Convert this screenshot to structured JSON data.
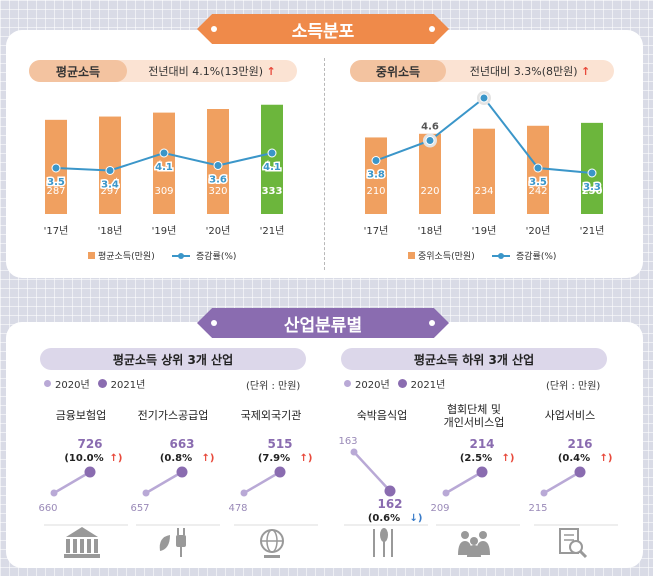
{
  "income": {
    "title": "소득분포",
    "avg": {
      "label": "평균소득",
      "change_text": "전년대비 4.1%(13만원)",
      "chart_data": {
        "type": "bar",
        "categories": [
          "'17년",
          "'18년",
          "'19년",
          "'20년",
          "'21년"
        ],
        "series": [
          {
            "name": "평균소득(만원)",
            "values": [
              287,
              297,
              309,
              320,
              333
            ]
          },
          {
            "name": "증감률(%)",
            "values": [
              3.5,
              3.4,
              4.1,
              3.6,
              4.1
            ]
          }
        ],
        "ylim": [
          0,
          400
        ],
        "rate_ylim": [
          0,
          8
        ]
      }
    },
    "median": {
      "label": "중위소득",
      "change_text": "전년대비 3.3%(8만원)",
      "chart_data": {
        "type": "bar",
        "categories": [
          "'17년",
          "'18년",
          "'19년",
          "'20년",
          "'21년"
        ],
        "series": [
          {
            "name": "중위소득(만원)",
            "values": [
              210,
              220,
              234,
              242,
              250
            ]
          },
          {
            "name": "증감률(%)",
            "values": [
              3.8,
              4.6,
              6.3,
              3.5,
              3.3
            ]
          }
        ],
        "ylim": [
          0,
          360
        ],
        "rate_ylim": [
          0,
          8
        ]
      }
    },
    "arrow_up": "↑"
  },
  "industry": {
    "title": "산업분류별",
    "top": {
      "header": "평균소득 상위 3개 산업",
      "legend_2020": "2020년",
      "legend_2021": "2021년",
      "unit": "(단위 : 만원)",
      "chart_data": {
        "type": "line",
        "items": [
          {
            "name": "금융보험업",
            "v2020": 660,
            "v2021": 726,
            "rate": "(10.0%",
            "dir": "↑",
            "icon": "bank-icon"
          },
          {
            "name": "전기가스공급업",
            "v2020": 657,
            "v2021": 663,
            "rate": "(0.8%",
            "dir": "↑",
            "icon": "plug-leaf-icon"
          },
          {
            "name": "국제외국기관",
            "v2020": 478,
            "v2021": 515,
            "rate": "(7.9%",
            "dir": "↑",
            "icon": "globe-icon"
          }
        ]
      }
    },
    "bottom": {
      "header": "평균소득 하위 3개 산업",
      "legend_2020": "2020년",
      "legend_2021": "2021년",
      "unit": "(단위 : 만원)",
      "chart_data": {
        "type": "line",
        "items": [
          {
            "name": "숙박음식업",
            "v2020": 163,
            "v2021": 162,
            "rate": "(0.6%",
            "dir": "↓",
            "icon": "fork-spoon-icon"
          },
          {
            "name": "협회단체 및 개인서비스업",
            "name_line1": "협회단체 및",
            "name_line2": "개인서비스업",
            "v2020": 209,
            "v2021": 214,
            "rate": "(2.5%",
            "dir": "↑",
            "icon": "people-icon"
          },
          {
            "name": "사업서비스",
            "v2020": 215,
            "v2021": 216,
            "rate": "(0.4%",
            "dir": "↑",
            "icon": "document-search-icon"
          }
        ]
      }
    }
  },
  "colors": {
    "orange": "#f0a060",
    "orange_dark": "#ec8a45",
    "green": "#6cb63c",
    "line_blue": "#3b96c9",
    "purple": "#8a6cb0",
    "purple_light": "#b9a9d6",
    "up_red": "#e84a3c",
    "down_blue": "#3a7cc9"
  }
}
